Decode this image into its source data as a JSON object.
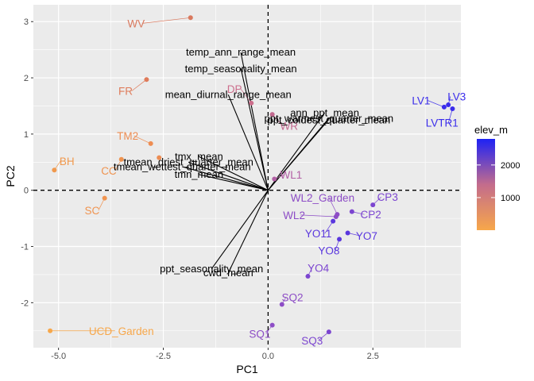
{
  "chart_data": {
    "type": "scatter",
    "subtype": "pca-biplot",
    "xlabel": "PC1",
    "ylabel": "PC2",
    "xlim": [
      -5.6,
      4.6
    ],
    "ylim": [
      -2.8,
      3.3
    ],
    "x_ticks": [
      -5.0,
      -2.5,
      0.0,
      2.5
    ],
    "y_ticks": [
      -2,
      -1,
      0,
      1,
      2,
      3
    ],
    "x_tick_labels": [
      "-5.0",
      "-2.5",
      "0.0",
      "2.5"
    ],
    "y_tick_labels": [
      "-2",
      "-1",
      "0",
      "1",
      "2",
      "3"
    ],
    "reference_lines": {
      "x": 0,
      "y": 0,
      "style": "dashed"
    },
    "grid": true,
    "background": "#ebebeb",
    "legend": {
      "title": "elev_m",
      "position": "right",
      "type": "colorbar",
      "range": [
        0,
        2800
      ],
      "ticks": [
        1000,
        2000
      ],
      "tick_labels": [
        "1000",
        "2000"
      ],
      "low_color": "#f7a74a",
      "high_color": "#1e22f5"
    },
    "points": [
      {
        "label": "WV",
        "x": -1.85,
        "y": 3.07,
        "elev": 750,
        "color": "#d9795e",
        "label_dx": -1.3,
        "label_dy": -0.1
      },
      {
        "label": "FR",
        "x": -2.9,
        "y": 1.97,
        "elev": 690,
        "color": "#df7b5a",
        "label_dx": -0.5,
        "label_dy": -0.2
      },
      {
        "label": "DP",
        "x": -0.4,
        "y": 1.55,
        "elev": 1400,
        "color": "#cc6e8c",
        "label_dx": -0.4,
        "label_dy": 0.25
      },
      {
        "label": "WR",
        "x": 0.1,
        "y": 1.35,
        "elev": 1550,
        "color": "#c2688f",
        "label_dx": 0.4,
        "label_dy": -0.2
      },
      {
        "label": "TM2",
        "x": -2.8,
        "y": 0.83,
        "elev": 380,
        "color": "#ee8d52",
        "label_dx": -0.55,
        "label_dy": 0.14
      },
      {
        "label": "BH",
        "x": -5.1,
        "y": 0.36,
        "elev": 140,
        "color": "#f0994e",
        "label_dx": 0.3,
        "label_dy": 0.16
      },
      {
        "label": "CC",
        "x": -3.5,
        "y": 0.55,
        "elev": 320,
        "color": "#ef934f",
        "label_dx": -0.3,
        "label_dy": -0.2
      },
      {
        "label": "",
        "x": -2.6,
        "y": 0.58,
        "elev": 400,
        "color": "#ec8c53"
      },
      {
        "label": "SC",
        "x": -3.9,
        "y": -0.14,
        "elev": 230,
        "color": "#f09450",
        "label_dx": -0.3,
        "label_dy": -0.22
      },
      {
        "label": "UCD_Garden",
        "x": -5.2,
        "y": -2.5,
        "elev": 16,
        "color": "#f7a74a",
        "label_dx": 1.7,
        "label_dy": 0.0
      },
      {
        "label": "WL1",
        "x": 0.15,
        "y": 0.2,
        "elev": 1600,
        "color": "#b15fa4",
        "label_dx": 0.4,
        "label_dy": 0.08
      },
      {
        "label": "LV1",
        "x": 4.2,
        "y": 1.48,
        "elev": 2700,
        "color": "#3a2ceb",
        "label_dx": -0.55,
        "label_dy": 0.12
      },
      {
        "label": "LV3",
        "x": 4.3,
        "y": 1.52,
        "elev": 2700,
        "color": "#3a2ceb",
        "label_dx": 0.2,
        "label_dy": 0.15
      },
      {
        "label": "LVTR1",
        "x": 4.4,
        "y": 1.45,
        "elev": 2700,
        "color": "#3a2ceb",
        "label_dx": -0.25,
        "label_dy": -0.25
      },
      {
        "label": "WL2_Garden",
        "x": 1.65,
        "y": -0.43,
        "elev": 2050,
        "color": "#8d4dc6",
        "label_dx": -0.35,
        "label_dy": 0.3
      },
      {
        "label": "CP3",
        "x": 2.5,
        "y": -0.26,
        "elev": 2200,
        "color": "#7c45d0",
        "label_dx": 0.35,
        "label_dy": 0.14
      },
      {
        "label": "WL2",
        "x": 1.62,
        "y": -0.47,
        "elev": 2020,
        "color": "#8d4dc6",
        "label_dx": -1.0,
        "label_dy": 0.03
      },
      {
        "label": "CP2",
        "x": 2.0,
        "y": -0.38,
        "elev": 2200,
        "color": "#7c45d0",
        "label_dx": 0.45,
        "label_dy": -0.05
      },
      {
        "label": "YO11",
        "x": 1.55,
        "y": -0.55,
        "elev": 2470,
        "color": "#5a37de",
        "label_dx": -0.35,
        "label_dy": -0.22
      },
      {
        "label": "YO7",
        "x": 1.9,
        "y": -0.76,
        "elev": 2470,
        "color": "#5a37de",
        "label_dx": 0.45,
        "label_dy": -0.05
      },
      {
        "label": "YO8",
        "x": 1.7,
        "y": -0.87,
        "elev": 2470,
        "color": "#5a37de",
        "label_dx": -0.25,
        "label_dy": -0.2
      },
      {
        "label": "YO4",
        "x": 0.95,
        "y": -1.53,
        "elev": 2160,
        "color": "#7c45d0",
        "label_dx": 0.25,
        "label_dy": 0.15
      },
      {
        "label": "SQ2",
        "x": 0.33,
        "y": -2.03,
        "elev": 2030,
        "color": "#8d4dc6",
        "label_dx": 0.25,
        "label_dy": 0.13
      },
      {
        "label": "SQ1",
        "x": 0.1,
        "y": -2.4,
        "elev": 2100,
        "color": "#8d4dc6",
        "label_dx": -0.3,
        "label_dy": -0.15
      },
      {
        "label": "SQ3",
        "x": 1.45,
        "y": -2.52,
        "elev": 2350,
        "color": "#7c45d0",
        "label_dx": -0.4,
        "label_dy": -0.15
      }
    ],
    "loadings": [
      {
        "label": "temp_ann_range_mean",
        "x": -0.65,
        "y": 2.45,
        "label_x": -0.65,
        "label_y": 2.47
      },
      {
        "label": "temp_seasonality_mean",
        "x": -0.65,
        "y": 2.17,
        "label_x": -0.65,
        "label_y": 2.17
      },
      {
        "label": "mean_diurnal_range_mean",
        "x": -0.95,
        "y": 1.7,
        "label_x": -0.95,
        "label_y": 1.71
      },
      {
        "label": "ann_ppt_mean",
        "x": 1.35,
        "y": 1.38,
        "label_x": 1.35,
        "label_y": 1.39
      },
      {
        "label": "ppt_warmest_quarter_mean",
        "x": 1.45,
        "y": 1.28,
        "label_x": 1.45,
        "label_y": 1.29
      },
      {
        "label": "ppt_coldest_quarter_mean",
        "x": 1.45,
        "y": 1.26,
        "label_x": 1.45,
        "label_y": 1.26
      },
      {
        "label": "tmx_mean",
        "x": -1.65,
        "y": 0.6,
        "label_x": -1.65,
        "label_y": 0.61
      },
      {
        "label": "tmean_driest_quarter_mean",
        "x": -1.9,
        "y": 0.5,
        "label_x": -1.9,
        "label_y": 0.51
      },
      {
        "label": "tmean_wettest_quarter_mean",
        "x": -2.05,
        "y": 0.42,
        "label_x": -2.05,
        "label_y": 0.43
      },
      {
        "label": "tmn_mean",
        "x": -1.65,
        "y": 0.28,
        "label_x": -1.65,
        "label_y": 0.29
      },
      {
        "label": "ppt_seasonality_mean",
        "x": -1.35,
        "y": -1.4,
        "label_x": -1.35,
        "label_y": -1.39
      },
      {
        "label": "cwd_mean",
        "x": -0.95,
        "y": -1.47,
        "label_x": -0.95,
        "label_y": -1.46
      }
    ]
  }
}
